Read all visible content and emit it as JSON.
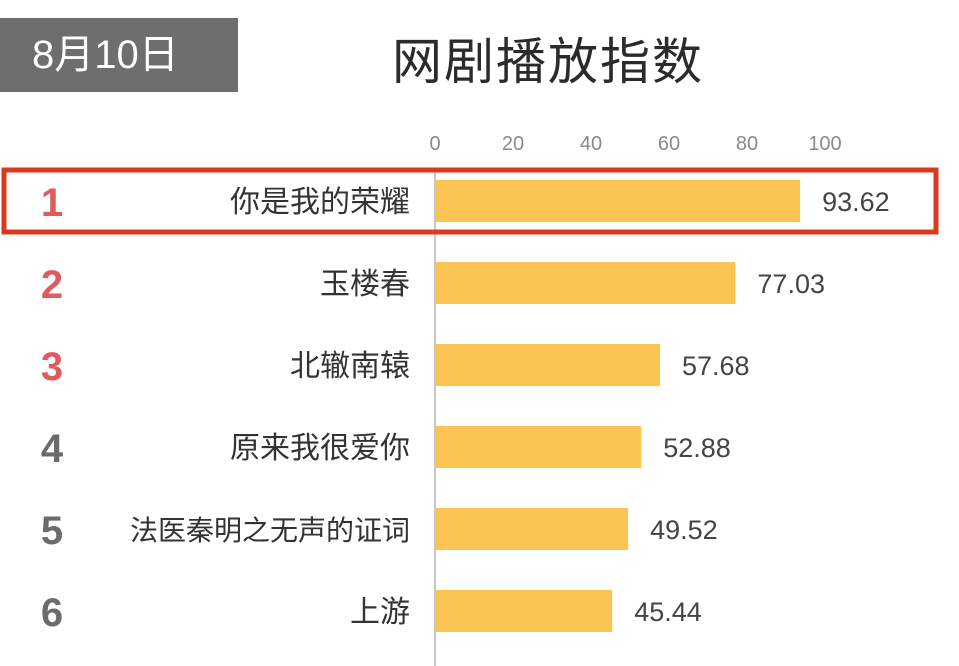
{
  "header": {
    "date": "8月10日",
    "title": "网剧播放指数"
  },
  "colors": {
    "bar": "#fcc453",
    "rank_highlight": "#e05a5e",
    "rank_normal": "#6b6b6b",
    "highlight_border": "#d93a1f",
    "date_badge_bg": "#6e6e6e"
  },
  "chart_data": {
    "type": "bar",
    "orientation": "horizontal",
    "title": "网剧播放指数",
    "xlim": [
      0,
      100
    ],
    "x_ticks": [
      "0",
      "20",
      "40",
      "60",
      "80",
      "100"
    ],
    "categories": [
      "你是我的荣耀",
      "玉楼春",
      "北辙南辕",
      "原来我很爱你",
      "法医秦明之无声的证词",
      "上游"
    ],
    "ranks": [
      "1",
      "2",
      "3",
      "4",
      "5",
      "6"
    ],
    "values": [
      93.62,
      77.03,
      57.68,
      52.88,
      49.52,
      45.44
    ],
    "value_labels": [
      "93.62",
      "77.03",
      "57.68",
      "52.88",
      "49.52",
      "45.44"
    ],
    "highlighted_rank": "1"
  }
}
